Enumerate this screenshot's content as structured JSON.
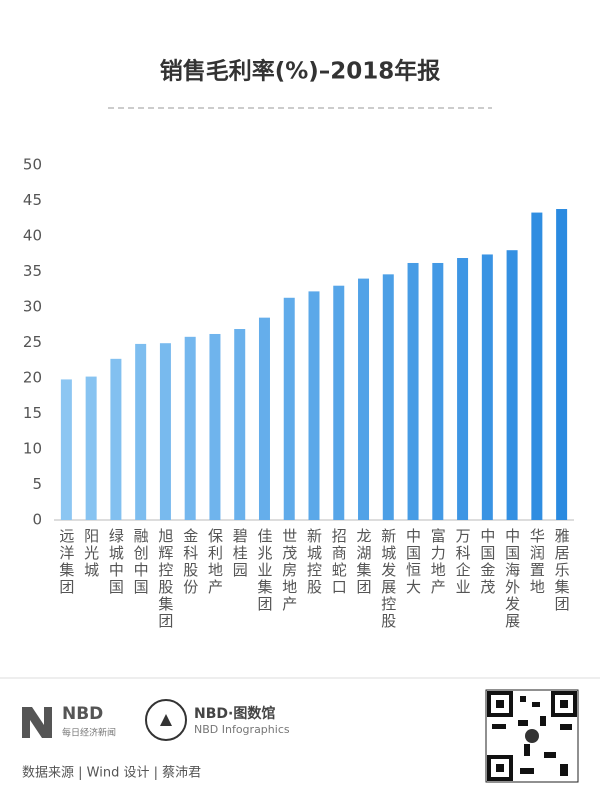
{
  "chart_data": {
    "type": "bar",
    "title": "销售毛利率(%)–2018年报",
    "categories": [
      "远洋集团",
      "阳光城",
      "绿城中国",
      "融创中国",
      "旭辉控股集团",
      "金科股份",
      "保利地产",
      "碧桂园",
      "佳兆业集团",
      "世茂房地产",
      "新城控股",
      "招商蛇口",
      "龙湖集团",
      "新城发展控股",
      "中国恒大",
      "富力地产",
      "万科企业",
      "中国金茂",
      "中国海外发展",
      "华润置地",
      "雅居乐集团"
    ],
    "values": [
      19.8,
      20.2,
      22.7,
      24.8,
      24.9,
      25.8,
      26.2,
      26.9,
      28.5,
      31.3,
      32.2,
      33.0,
      34.0,
      34.6,
      36.2,
      36.2,
      36.9,
      37.4,
      38.0,
      43.3,
      43.8
    ],
    "colors": [
      "#8cc6f2",
      "#2a8ae0"
    ],
    "ylim": [
      0,
      50
    ],
    "yticks": [
      0,
      5,
      10,
      15,
      20,
      25,
      30,
      35,
      40,
      45,
      50
    ],
    "grid": false
  },
  "footer": {
    "brand": "NBD",
    "brand_sub": "每日经济新闻",
    "infographics": "NBD·图数馆",
    "infographics_sub": "NBD Infographics",
    "credits": "数据来源 | Wind  设计 | 蔡沛君"
  }
}
